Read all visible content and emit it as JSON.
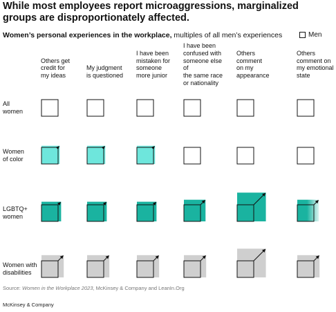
{
  "headline": "While most employees report microaggressions, marginalized groups are disproportionately affected.",
  "subtitle": {
    "bold": "Women’s personal experiences in the workplace,",
    "normal": " multiples of all men’s experiences"
  },
  "legend": {
    "label": "Men"
  },
  "source": {
    "prefix": "Source: ",
    "title": "Women in the Workplace 2023",
    "rest": ", McKinsey & Company and LeanIn.Org"
  },
  "brand": "McKinsey & Company",
  "colors": {
    "women_of_color": "#6ee6dc",
    "lgbtq_women": "#1ab3a0",
    "women_with_disabilities": "#cfcfcf",
    "baseline_outline": "#111111"
  },
  "chart_data": {
    "type": "heatmap",
    "encoding": "square area relative to men baseline box",
    "columns": [
      [
        "Others get",
        "credit for",
        "my ideas"
      ],
      [
        "My judgment",
        "is questioned"
      ],
      [
        "I have been",
        "mistaken for",
        "someone",
        "more junior"
      ],
      [
        "I have been",
        "confused with",
        "someone else of",
        "the same race",
        "or nationality"
      ],
      [
        "Others",
        "comment",
        "on my",
        "appearance"
      ],
      [
        "Others",
        "comment on",
        "my emotional",
        "state"
      ]
    ],
    "rows": [
      {
        "label": [
          "All",
          "women"
        ],
        "color": "none",
        "values": [
          1.0,
          1.0,
          1.0,
          1.0,
          1.0,
          1.0
        ]
      },
      {
        "label": [
          "Women",
          "of color"
        ],
        "color": "#6ee6dc",
        "values": [
          1.2,
          1.2,
          1.2,
          null,
          null,
          null
        ]
      },
      {
        "label": [
          "LGBTQ+",
          "women"
        ],
        "color": "#1ab3a0",
        "values": [
          1.4,
          1.4,
          1.4,
          1.7,
          3.0,
          1.7
        ]
      },
      {
        "label": [
          "Women with",
          "disabilities"
        ],
        "color": "#cfcfcf",
        "values": [
          1.8,
          1.8,
          1.8,
          1.8,
          3.0,
          1.8
        ]
      }
    ]
  }
}
